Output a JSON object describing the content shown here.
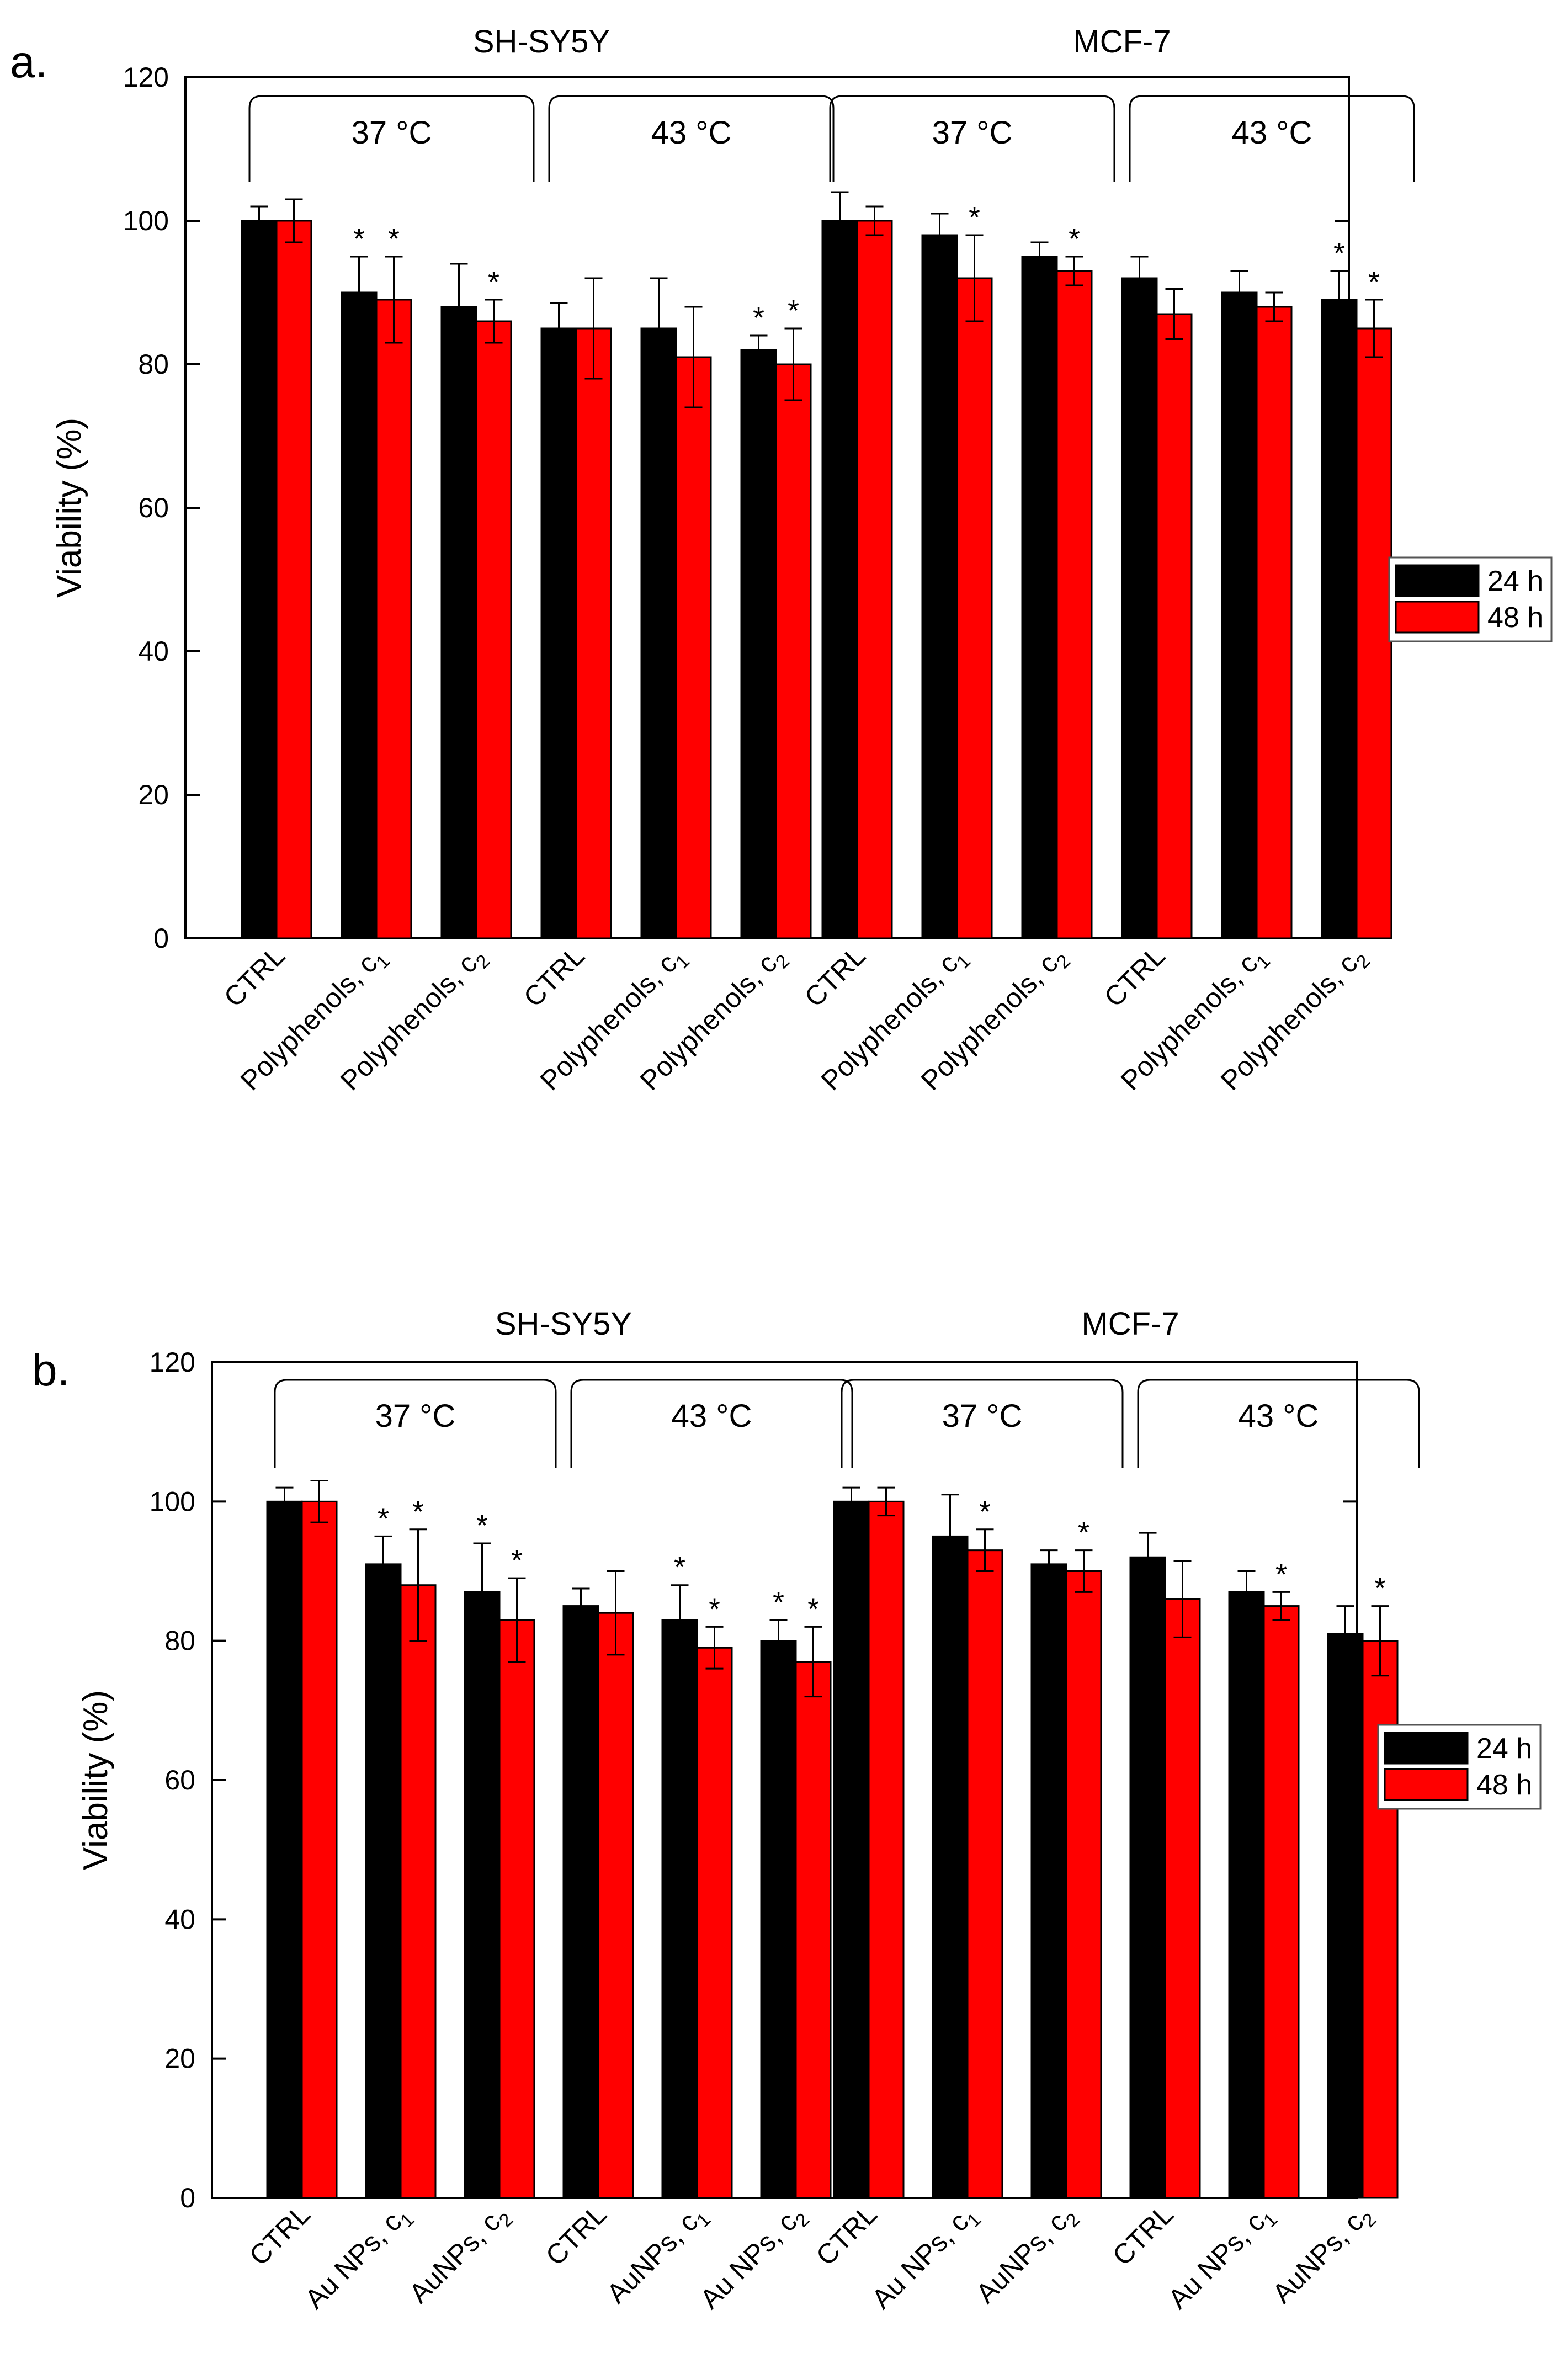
{
  "figure": {
    "background": "#ffffff"
  },
  "legend": {
    "items": [
      {
        "label": "24 h",
        "color": "#000000"
      },
      {
        "label": "48 h",
        "color": "#ff0000"
      }
    ]
  },
  "chart_data": [
    {
      "panel_label": "a.",
      "type": "bar",
      "ylabel": "Viability (%)",
      "ylim": [
        0,
        120
      ],
      "yticks": [
        "0",
        "20",
        "40",
        "60",
        "80",
        "100",
        "120"
      ],
      "legend_position": "right",
      "groups": [
        {
          "name": "SH-SY5Y",
          "subgroups": [
            {
              "name": "37 °C",
              "categories": [
                {
                  "base": "CTRL",
                  "sub": ""
                },
                {
                  "base": "Polyphenols, c",
                  "sub": "1"
                },
                {
                  "base": "Polyphenols, c",
                  "sub": "2"
                }
              ]
            },
            {
              "name": "43 °C",
              "categories": [
                {
                  "base": "CTRL",
                  "sub": ""
                },
                {
                  "base": "Polyphenols, c",
                  "sub": "1"
                },
                {
                  "base": "Polyphenols, c",
                  "sub": "2"
                }
              ]
            }
          ]
        },
        {
          "name": "MCF-7",
          "subgroups": [
            {
              "name": "37 °C",
              "categories": [
                {
                  "base": "CTRL",
                  "sub": ""
                },
                {
                  "base": "Polyphenols, c",
                  "sub": "1"
                },
                {
                  "base": "Polyphenols, c",
                  "sub": "2"
                }
              ]
            },
            {
              "name": "43 °C",
              "categories": [
                {
                  "base": "CTRL",
                  "sub": ""
                },
                {
                  "base": "Polyphenols, c",
                  "sub": "1"
                },
                {
                  "base": "Polyphenols, c",
                  "sub": "2"
                }
              ]
            }
          ]
        }
      ],
      "series": [
        {
          "name": "24 h",
          "color": "#000000",
          "values": [
            100,
            90,
            88,
            85,
            85,
            82,
            100,
            98,
            95,
            92,
            90,
            89
          ],
          "errors": [
            2,
            5,
            6,
            3.5,
            7,
            2,
            4,
            3,
            2,
            3,
            3,
            4
          ],
          "significant": [
            false,
            true,
            false,
            false,
            false,
            true,
            false,
            false,
            false,
            false,
            false,
            true
          ]
        },
        {
          "name": "48 h",
          "color": "#ff0000",
          "values": [
            100,
            89,
            86,
            85,
            81,
            80,
            100,
            92,
            93,
            87,
            88,
            85
          ],
          "errors": [
            3,
            6,
            3,
            7,
            7,
            5,
            2,
            6,
            2,
            3.5,
            2,
            4
          ],
          "significant": [
            false,
            true,
            true,
            false,
            false,
            true,
            false,
            true,
            true,
            false,
            false,
            true
          ]
        }
      ]
    },
    {
      "panel_label": "b.",
      "type": "bar",
      "ylabel": "Viability (%)",
      "ylim": [
        0,
        120
      ],
      "yticks": [
        "0",
        "20",
        "40",
        "60",
        "80",
        "100",
        "120"
      ],
      "legend_position": "right",
      "groups": [
        {
          "name": "SH-SY5Y",
          "subgroups": [
            {
              "name": "37 °C",
              "categories": [
                {
                  "base": "CTRL",
                  "sub": ""
                },
                {
                  "base": "Au NPs, c",
                  "sub": "1"
                },
                {
                  "base": "AuNPs, c",
                  "sub": "2"
                }
              ]
            },
            {
              "name": "43 °C",
              "categories": [
                {
                  "base": "CTRL",
                  "sub": ""
                },
                {
                  "base": "AuNPs, c",
                  "sub": "1"
                },
                {
                  "base": "Au NPs, c",
                  "sub": "2"
                }
              ]
            }
          ]
        },
        {
          "name": "MCF-7",
          "subgroups": [
            {
              "name": "37 °C",
              "categories": [
                {
                  "base": "CTRL",
                  "sub": ""
                },
                {
                  "base": "Au NPs, c",
                  "sub": "1"
                },
                {
                  "base": "AuNPs, c",
                  "sub": "2"
                }
              ]
            },
            {
              "name": "43 °C",
              "categories": [
                {
                  "base": "CTRL",
                  "sub": ""
                },
                {
                  "base": "Au NPs, c",
                  "sub": "1"
                },
                {
                  "base": "AuNPs, c",
                  "sub": "2"
                }
              ]
            }
          ]
        }
      ],
      "series": [
        {
          "name": "24 h",
          "color": "#000000",
          "values": [
            100,
            91,
            87,
            85,
            83,
            80,
            100,
            95,
            91,
            92,
            87,
            81
          ],
          "errors": [
            2,
            4,
            7,
            2.5,
            5,
            3,
            2,
            6,
            2,
            3.5,
            3,
            4
          ],
          "significant": [
            false,
            true,
            true,
            false,
            true,
            true,
            false,
            false,
            false,
            false,
            false,
            false
          ]
        },
        {
          "name": "48 h",
          "color": "#ff0000",
          "values": [
            100,
            88,
            83,
            84,
            79,
            77,
            100,
            93,
            90,
            86,
            85,
            80
          ],
          "errors": [
            3,
            8,
            6,
            6,
            3,
            5,
            2,
            3,
            3,
            5.5,
            2,
            5
          ],
          "significant": [
            false,
            true,
            true,
            false,
            true,
            true,
            false,
            true,
            true,
            false,
            true,
            true
          ]
        }
      ]
    }
  ]
}
